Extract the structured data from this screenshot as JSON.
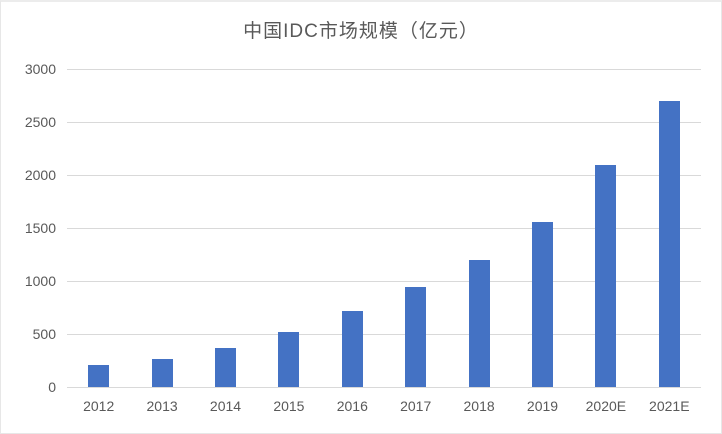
{
  "chart_data": {
    "type": "bar",
    "title": "中国IDC市场规模（亿元）",
    "categories": [
      "2012",
      "2013",
      "2014",
      "2015",
      "2016",
      "2017",
      "2018",
      "2019",
      "2020E",
      "2021E"
    ],
    "values": [
      211,
      263,
      372,
      519,
      715,
      946,
      1200,
      1555,
      2090,
      2700
    ],
    "xlabel": "",
    "ylabel": "",
    "ylim": [
      0,
      3000
    ],
    "ytick_step": 500,
    "ytick_labels": [
      "0",
      "500",
      "1000",
      "1500",
      "2000",
      "2500",
      "3000"
    ],
    "grid": true,
    "legend_position": "none",
    "colors": {
      "bar": "#4472C4",
      "labels": "#595959",
      "gridlines": "#D9D9D9",
      "background": "#FFFFFF",
      "frame_border": "#ECECEC"
    }
  }
}
